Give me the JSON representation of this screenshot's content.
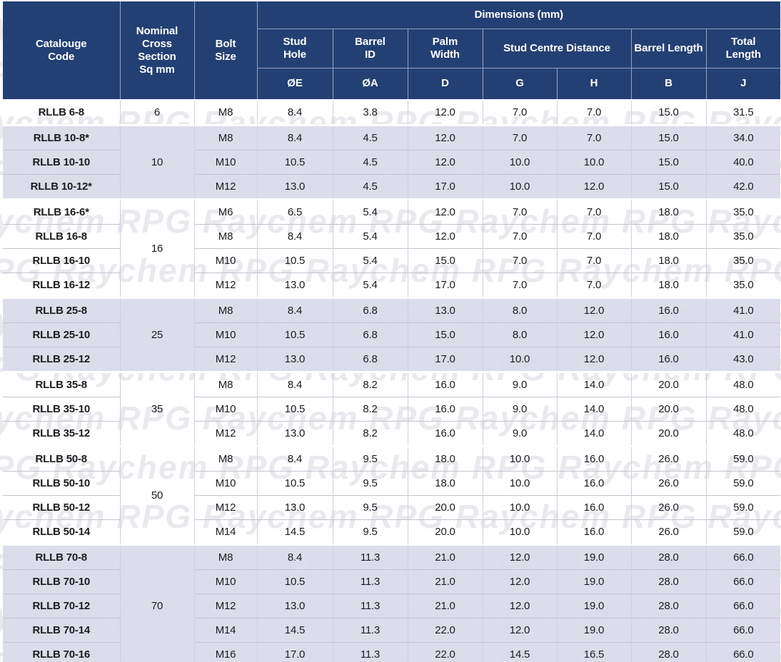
{
  "colors": {
    "header_bg": "#1c3a70",
    "header_grid": "#93a1c0",
    "row_shaded_bg": "#d9dbe8",
    "row_grid": "#c2c5cf",
    "text": "#1c1c1e",
    "watermark": "#e9e9ee"
  },
  "watermark": {
    "text": "Raychem RPG"
  },
  "header": {
    "dimensions_title": "Dimensions (mm)",
    "catalogue_code": "Catalouge\nCode",
    "cross_section": "Nominal\nCross\nSection\nSq mm",
    "bolt_size": "Bolt\nSize",
    "stud_hole": "Stud\nHole",
    "barrel_id": "Barrel\nID",
    "palm_width": "Palm\nWidth",
    "stud_centre_distance": "Stud Centre Distance",
    "barrel_length": "Barrel Length",
    "total_length": "Total\nLength",
    "codes": {
      "stud_hole": "ØE",
      "barrel_id": "ØA",
      "palm_width": "D",
      "centre_g": "G",
      "centre_h": "H",
      "barrel_length": "B",
      "total_length": "J"
    }
  },
  "table": {
    "columns": [
      "Catalouge Code",
      "Nominal Cross Section Sq mm",
      "Bolt Size",
      "ØE",
      "ØA",
      "D",
      "G",
      "H",
      "B",
      "J"
    ],
    "groups": [
      {
        "cross_section": "6",
        "shaded": false,
        "rows": [
          [
            "RLLB 6-8",
            "M8",
            "8.4",
            "3.8",
            "12.0",
            "7.0",
            "7.0",
            "15.0",
            "31.5"
          ]
        ]
      },
      {
        "cross_section": "10",
        "shaded": true,
        "rows": [
          [
            "RLLB 10-8*",
            "M8",
            "8.4",
            "4.5",
            "12.0",
            "7.0",
            "7.0",
            "15.0",
            "34.0"
          ],
          [
            "RLLB 10-10",
            "M10",
            "10.5",
            "4.5",
            "12.0",
            "10.0",
            "10.0",
            "15.0",
            "40.0"
          ],
          [
            "RLLB 10-12*",
            "M12",
            "13.0",
            "4.5",
            "17.0",
            "10.0",
            "12.0",
            "15.0",
            "42.0"
          ]
        ]
      },
      {
        "cross_section": "16",
        "shaded": false,
        "rows": [
          [
            "RLLB 16-6*",
            "M6",
            "6.5",
            "5.4",
            "12.0",
            "7.0",
            "7.0",
            "18.0",
            "35.0"
          ],
          [
            "RLLB 16-8",
            "M8",
            "8.4",
            "5.4",
            "12.0",
            "7.0",
            "7.0",
            "18.0",
            "35.0"
          ],
          [
            "RLLB 16-10",
            "M10",
            "10.5",
            "5.4",
            "15.0",
            "7.0",
            "7.0",
            "18.0",
            "35.0"
          ],
          [
            "RLLB 16-12",
            "M12",
            "13.0",
            "5.4",
            "17.0",
            "7.0",
            "7.0",
            "18.0",
            "35.0"
          ]
        ]
      },
      {
        "cross_section": "25",
        "shaded": true,
        "rows": [
          [
            "RLLB 25-8",
            "M8",
            "8.4",
            "6.8",
            "13.0",
            "8.0",
            "12.0",
            "16.0",
            "41.0"
          ],
          [
            "RLLB 25-10",
            "M10",
            "10.5",
            "6.8",
            "15.0",
            "8.0",
            "12.0",
            "16.0",
            "41.0"
          ],
          [
            "RLLB 25-12",
            "M12",
            "13.0",
            "6.8",
            "17.0",
            "10.0",
            "12.0",
            "16.0",
            "43.0"
          ]
        ]
      },
      {
        "cross_section": "35",
        "shaded": false,
        "rows": [
          [
            "RLLB 35-8",
            "M8",
            "8.4",
            "8.2",
            "16.0",
            "9.0",
            "14.0",
            "20.0",
            "48.0"
          ],
          [
            "RLLB 35-10",
            "M10",
            "10.5",
            "8.2",
            "16.0",
            "9.0",
            "14.0",
            "20.0",
            "48.0"
          ],
          [
            "RLLB 35-12",
            "M12",
            "13.0",
            "8.2",
            "16.0",
            "9.0",
            "14.0",
            "20.0",
            "48.0"
          ]
        ]
      },
      {
        "cross_section": "50",
        "shaded": false,
        "rows": [
          [
            "RLLB 50-8",
            "M8",
            "8.4",
            "9.5",
            "18.0",
            "10.0",
            "16.0",
            "26.0",
            "59.0"
          ],
          [
            "RLLB 50-10",
            "M10",
            "10.5",
            "9.5",
            "18.0",
            "10.0",
            "16.0",
            "26.0",
            "59.0"
          ],
          [
            "RLLB 50-12",
            "M12",
            "13.0",
            "9.5",
            "20.0",
            "10.0",
            "16.0",
            "26.0",
            "59.0"
          ],
          [
            "RLLB 50-14",
            "M14",
            "14.5",
            "9.5",
            "20.0",
            "10.0",
            "16.0",
            "26.0",
            "59.0"
          ]
        ]
      },
      {
        "cross_section": "70",
        "shaded": true,
        "rows": [
          [
            "RLLB 70-8",
            "M8",
            "8.4",
            "11.3",
            "21.0",
            "12.0",
            "19.0",
            "28.0",
            "66.0"
          ],
          [
            "RLLB 70-10",
            "M10",
            "10.5",
            "11.3",
            "21.0",
            "12.0",
            "19.0",
            "28.0",
            "66.0"
          ],
          [
            "RLLB 70-12",
            "M12",
            "13.0",
            "11.3",
            "21.0",
            "12.0",
            "19.0",
            "28.0",
            "66.0"
          ],
          [
            "RLLB 70-14",
            "M14",
            "14.5",
            "11.3",
            "22.0",
            "12.0",
            "19.0",
            "28.0",
            "66.0"
          ],
          [
            "RLLB 70-16",
            "M16",
            "17.0",
            "11.3",
            "22.0",
            "14.5",
            "16.5",
            "28.0",
            "66.0"
          ]
        ]
      }
    ]
  }
}
